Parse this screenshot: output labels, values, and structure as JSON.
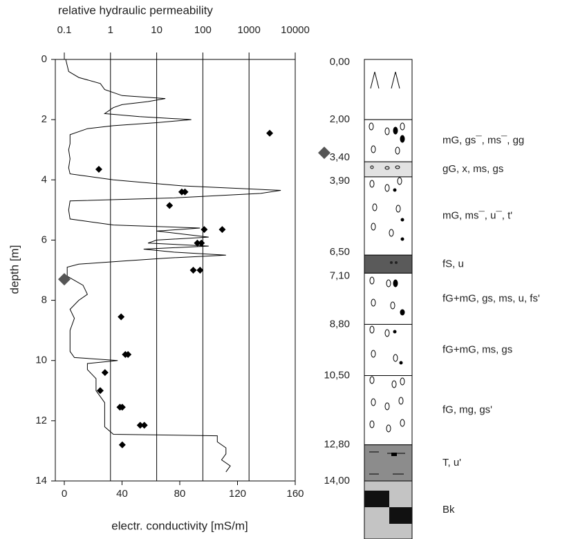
{
  "chart_data": {
    "type": "depth-profile",
    "top_axis_label": "relative hydraulic permeability",
    "x_axis_label": "electr. conductivity [mS/m]",
    "y_axis_label": "depth [m]",
    "ylim": [
      0,
      14
    ],
    "yticks": [
      0,
      2,
      4,
      6,
      8,
      10,
      12,
      14
    ],
    "y_inverted": true,
    "xlim": [
      0,
      160
    ],
    "xticks": [
      0,
      40,
      80,
      120,
      160
    ],
    "x2lim": [
      0.1,
      10000
    ],
    "x2ticks": [
      0.1,
      1,
      10,
      100,
      1000,
      10000
    ],
    "x2log": true,
    "grid": true,
    "conductivity": {
      "color": "#000000",
      "depth": [
        0,
        0.2,
        0.4,
        0.6,
        0.8,
        1.0,
        1.2,
        1.3,
        1.4,
        1.5,
        1.6,
        1.8,
        1.9,
        2.0,
        2.1,
        2.2,
        2.3,
        2.5,
        2.8,
        3.0,
        3.3,
        3.6,
        3.8,
        4.0,
        4.2,
        4.35,
        4.45,
        4.6,
        4.7,
        5.0,
        5.3,
        5.5,
        5.6,
        5.7,
        5.8,
        5.9,
        6.0,
        6.1,
        6.2,
        6.3,
        6.4,
        6.5,
        6.6,
        6.7,
        6.8,
        6.9,
        7.2,
        7.5,
        7.8,
        8.0,
        8.3,
        8.6,
        9.0,
        9.4,
        9.7,
        9.9,
        10.0,
        10.1,
        10.3,
        10.6,
        11.0,
        11.4,
        11.8,
        12.2,
        12.45,
        12.5,
        12.7,
        12.9,
        13.1,
        13.3,
        13.5,
        13.7
      ],
      "values": [
        1,
        2,
        3,
        10,
        25,
        28,
        40,
        70,
        58,
        40,
        34,
        28,
        52,
        88,
        64,
        34,
        16,
        4,
        4,
        3,
        4,
        3,
        4,
        34,
        82,
        150,
        136,
        76,
        4,
        3,
        4,
        34,
        94,
        64,
        82,
        100,
        64,
        58,
        100,
        55,
        76,
        112,
        70,
        40,
        10,
        2,
        2,
        13,
        16,
        10,
        4,
        7,
        4,
        4,
        4,
        7,
        37,
        16,
        16,
        22,
        22,
        28,
        28,
        28,
        34,
        106,
        106,
        112,
        112,
        109,
        115,
        112
      ]
    },
    "permeability": {
      "color": "#000000",
      "axis": "x2",
      "depth": [
        2.45,
        3.65,
        4.4,
        4.4,
        4.85,
        5.65,
        5.65,
        6.1,
        6.1,
        7.0,
        7.0,
        8.55,
        9.8,
        9.8,
        10.4,
        11.0,
        11.55,
        11.55,
        12.15,
        12.15,
        12.8
      ],
      "values": [
        2800,
        0.56,
        35,
        41,
        19,
        107,
        263,
        76,
        93,
        62,
        87,
        1.7,
        2.1,
        2.4,
        0.76,
        0.6,
        1.6,
        1.8,
        4.4,
        5.4,
        1.8
      ]
    },
    "markers": {
      "color": "#555555",
      "depth": [
        7.3,
        3.1
      ],
      "values": [
        0,
        null
      ]
    },
    "boundaries": [
      {
        "value": 0,
        "label": "0,00"
      },
      {
        "value": 2,
        "label": "2,00"
      },
      {
        "value": 3.4,
        "label": "3,40"
      },
      {
        "value": 3.9,
        "label": "3,90"
      },
      {
        "value": 6.5,
        "label": "6,50"
      },
      {
        "value": 7.1,
        "label": "7,10"
      },
      {
        "value": 8.8,
        "label": "8,80"
      },
      {
        "value": 10.5,
        "label": "10,50"
      },
      {
        "value": 12.8,
        "label": "12,80"
      },
      {
        "value": 14,
        "label": "14,00"
      }
    ],
    "layers": [
      {
        "label": null,
        "fill": "#ffffff"
      },
      {
        "label": "mG, gs¯, ms¯, gg",
        "fill": "#ffffff"
      },
      {
        "label": "gG, x, ms, gs",
        "fill": "#e2e2e2"
      },
      {
        "label": "mG, ms¯, u¯, t'",
        "fill": "#ffffff"
      },
      {
        "label": "fS, u",
        "fill": "#5a5a5a"
      },
      {
        "label": "fG+mG, gs, ms, u, fs'",
        "fill": "#ffffff"
      },
      {
        "label": "fG+mG, ms, gs",
        "fill": "#ffffff"
      },
      {
        "label": "fG, mg, gs'",
        "fill": "#ffffff"
      },
      {
        "label": "T, u'",
        "fill": "#8c8c8c"
      },
      {
        "label": "Bk",
        "fill": "#c4c4c4"
      }
    ]
  }
}
